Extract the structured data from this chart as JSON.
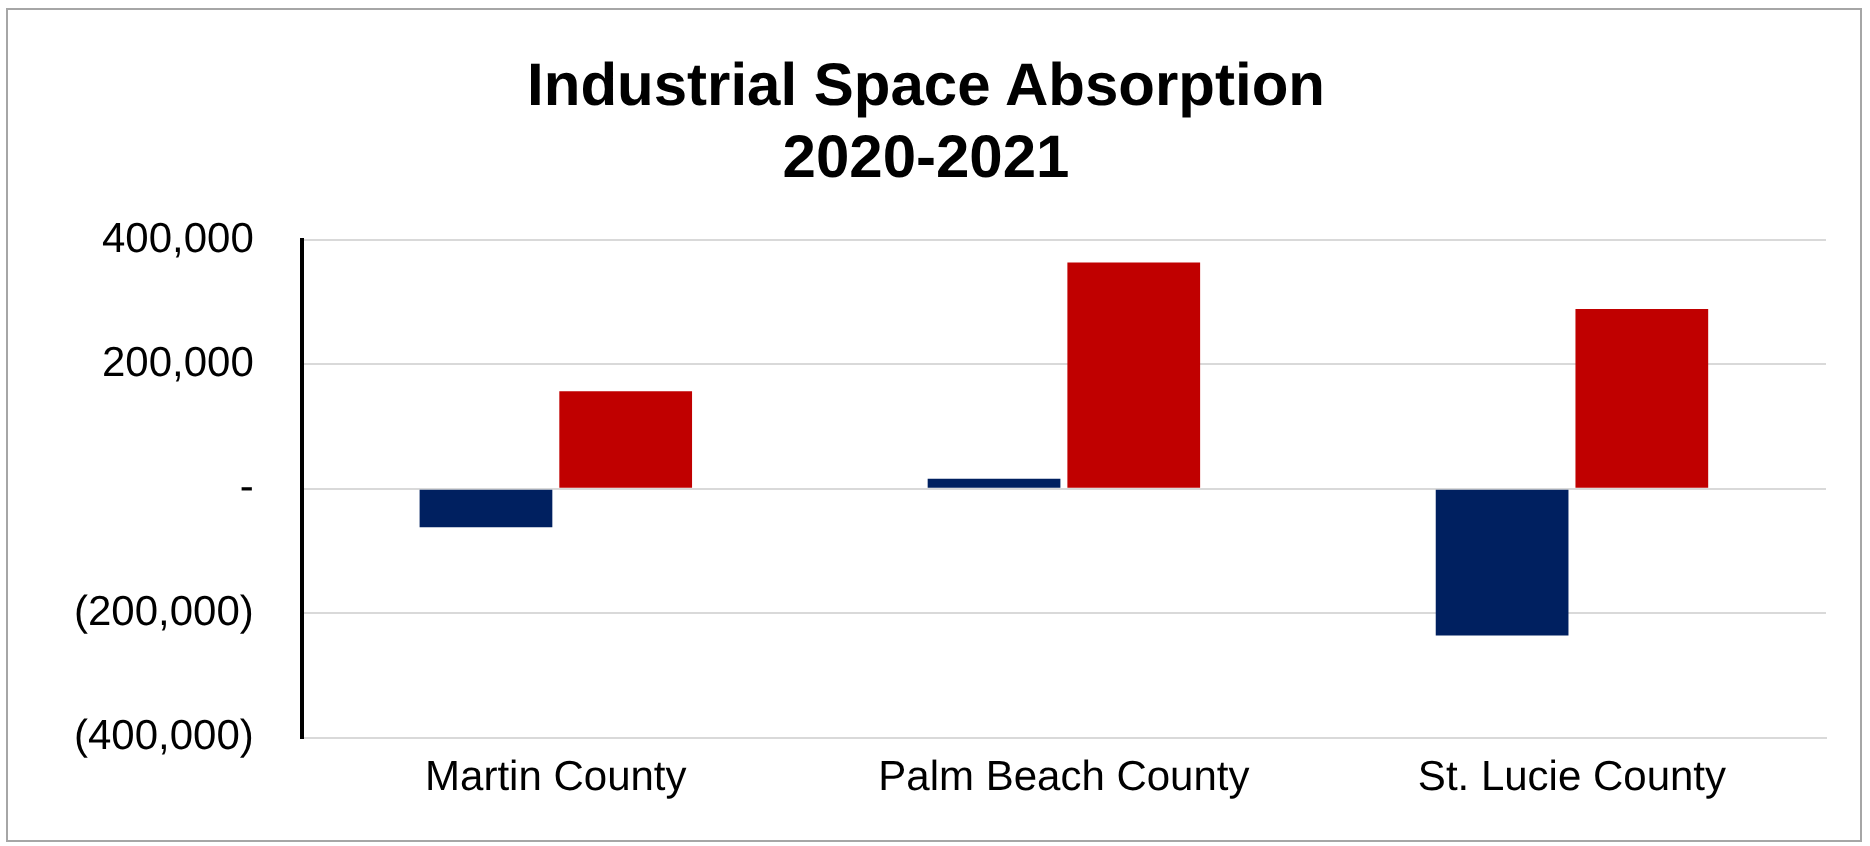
{
  "chart_data": {
    "type": "bar",
    "title": [
      "Industrial Space Absorption",
      "2020-2021"
    ],
    "categories": [
      "Martin County",
      "Palm Beach County",
      "St. Lucie County"
    ],
    "series": [
      {
        "color": "#002060",
        "values": [
          -62000,
          16000,
          -236000
        ]
      },
      {
        "color": "#c00000",
        "values": [
          157000,
          364000,
          289000
        ]
      }
    ],
    "ylim": [
      -400000,
      400000
    ],
    "yticks": [
      {
        "value": -400000,
        "label": "(400,000)"
      },
      {
        "value": -200000,
        "label": "(200,000)"
      },
      {
        "value": 0,
        "label": "-"
      },
      {
        "value": 200000,
        "label": "200,000"
      },
      {
        "value": 400000,
        "label": "400,000"
      }
    ],
    "grid": "y",
    "legend": false
  }
}
